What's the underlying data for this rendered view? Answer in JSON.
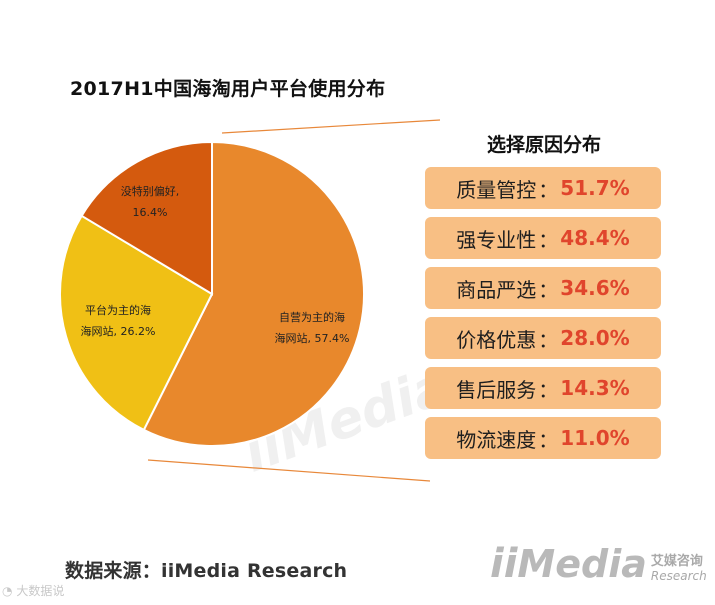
{
  "title": "2017H1中国海淘用户平台使用分布",
  "chart_data": {
    "type": "pie",
    "title": "2017H1中国海淘用户平台使用分布",
    "slices": [
      {
        "label_line1": "自营为主的海",
        "label_line2": "海网站, 57.4%",
        "name": "自营为主的海海网站",
        "value": 57.4,
        "color": "#e8882c"
      },
      {
        "label_line1": "平台为主的海",
        "label_line2": "海网站, 26.2%",
        "name": "平台为主的海海网站",
        "value": 26.2,
        "color": "#f0c015"
      },
      {
        "label_line1": "没特别偏好,",
        "label_line2": "16.4%",
        "name": "没特别偏好",
        "value": 16.4,
        "color": "#d45a0e"
      }
    ]
  },
  "reasons": {
    "title": "选择原因分布",
    "separator": "：",
    "items": [
      {
        "name": "质量管控",
        "value": "51.7%"
      },
      {
        "name": "强专业性",
        "value": "48.4%"
      },
      {
        "name": "商品严选",
        "value": "34.6%"
      },
      {
        "name": "价格优惠",
        "value": "28.0%"
      },
      {
        "name": "售后服务",
        "value": "14.3%"
      },
      {
        "name": "物流速度",
        "value": "11.0%"
      }
    ]
  },
  "source": "数据来源：iiMedia Research",
  "watermark": {
    "logo_ii": "ii",
    "logo_media": "Media",
    "logo_cn": "艾媒咨询",
    "logo_en": "Research",
    "weibo": "大数据说"
  }
}
